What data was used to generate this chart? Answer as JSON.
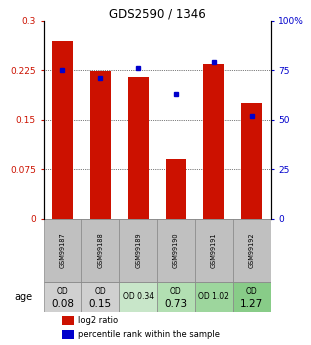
{
  "title": "GDS2590 / 1346",
  "samples": [
    "GSM99187",
    "GSM99188",
    "GSM99189",
    "GSM99190",
    "GSM99191",
    "GSM99192"
  ],
  "log2_ratio": [
    0.27,
    0.224,
    0.215,
    0.09,
    0.235,
    0.175
  ],
  "percentile_rank": [
    75,
    71,
    76,
    63,
    79,
    52
  ],
  "od_texts_top": [
    "OD",
    "OD",
    "OD 0.34",
    "OD",
    "OD 1.02",
    "OD"
  ],
  "od_texts_bot": [
    "0.08",
    "0.15",
    "",
    "0.73",
    "",
    "1.27"
  ],
  "od_colors": [
    "#d0d0d0",
    "#d0d0d0",
    "#c8e6c9",
    "#b2dfb2",
    "#9dd69d",
    "#88cc88"
  ],
  "sample_bg_color": "#c0c0c0",
  "bar_color": "#cc1100",
  "dot_color": "#0000cc",
  "ylim_left": [
    0,
    0.3
  ],
  "ylim_right": [
    0,
    100
  ],
  "yticks_left": [
    0,
    0.075,
    0.15,
    0.225,
    0.3
  ],
  "yticks_right": [
    0,
    25,
    50,
    75,
    100
  ],
  "ytick_labels_left": [
    "0",
    "0.075",
    "0.15",
    "0.225",
    "0.3"
  ],
  "ytick_labels_right": [
    "0",
    "25",
    "50",
    "75",
    "100%"
  ],
  "legend_items": [
    "log2 ratio",
    "percentile rank within the sample"
  ],
  "age_label": "age"
}
